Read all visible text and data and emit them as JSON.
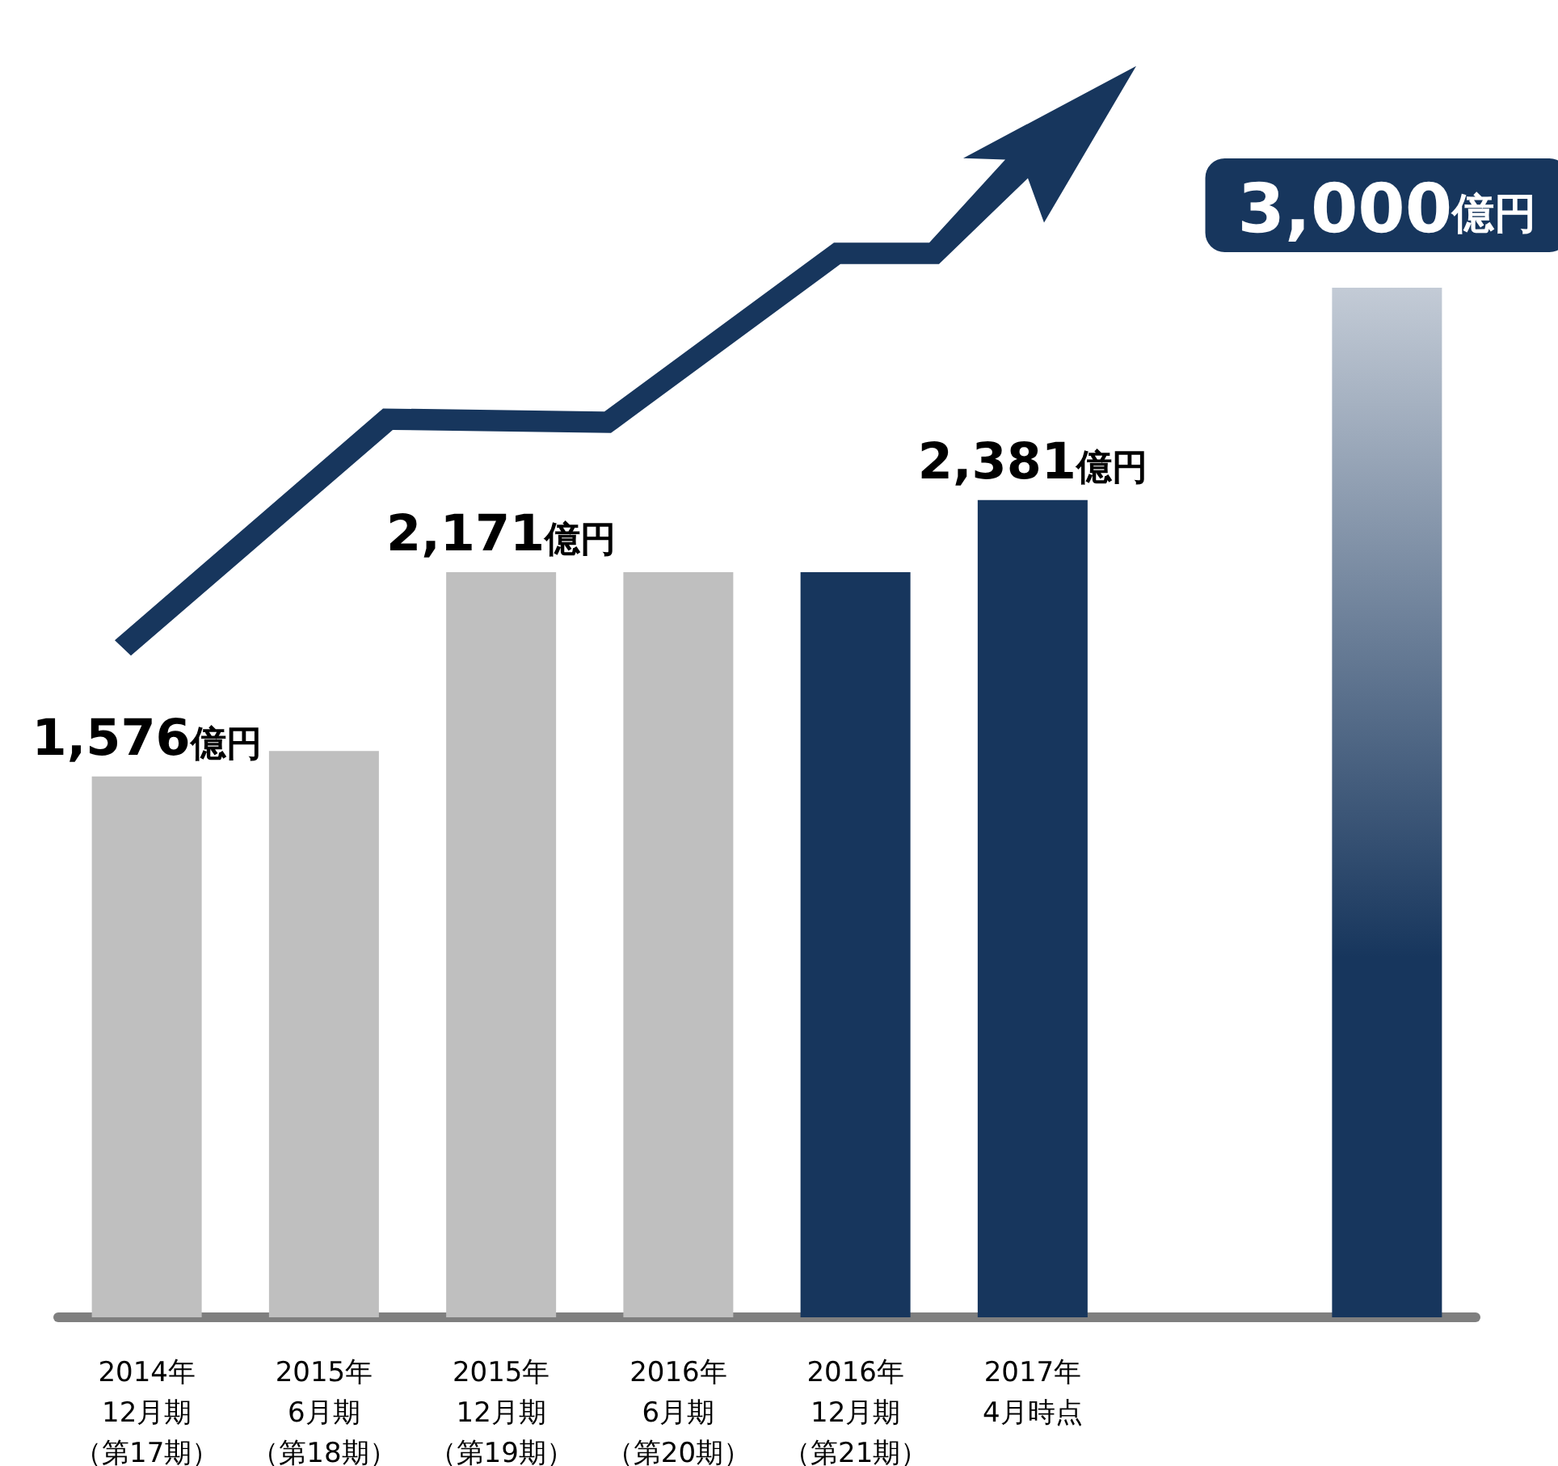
{
  "chart_data": {
    "type": "bar",
    "categories": [
      "2014年12月期（第17期）",
      "2015年6月期（第18期）",
      "2015年12月期（第19期）",
      "2016年6月期（第20期）",
      "2016年12月期（第21期）",
      "2017年4月時点",
      null,
      null
    ],
    "values": [
      1576,
      1650,
      2171,
      2171,
      2171,
      2381,
      null,
      3000
    ],
    "colors": [
      "#bfbfbf",
      "#bfbfbf",
      "#bfbfbf",
      "#bfbfbf",
      "#17365d",
      "#17365d",
      "#17365d",
      "#17365d"
    ],
    "value_labels": [
      "1,576億円",
      null,
      "2,171億円",
      null,
      null,
      "2,381億円",
      null,
      "3,000億円"
    ],
    "tick_labels": "x"
  }
}
